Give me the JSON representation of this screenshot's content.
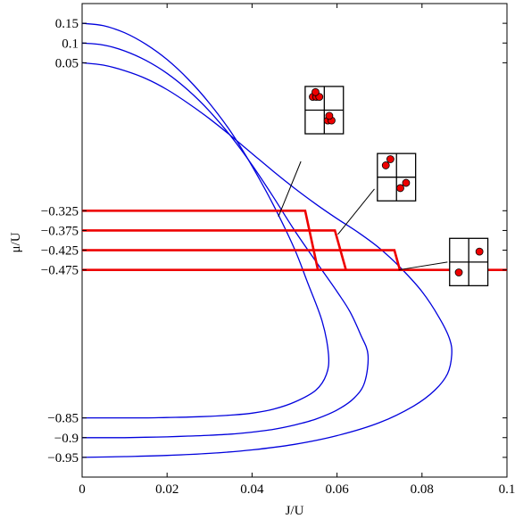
{
  "chart_data": {
    "type": "line",
    "title": "",
    "xlabel": "J/U",
    "ylabel": "μ/U",
    "xlim": [
      0,
      0.1
    ],
    "ylim": [
      -1.0,
      0.2
    ],
    "xticks": [
      0,
      0.02,
      0.04,
      0.06,
      0.08,
      0.1
    ],
    "xtick_labels": [
      "0",
      "0.02",
      "0.04",
      "0.06",
      "0.08",
      "0.1"
    ],
    "yticks": [
      0.15,
      0.1,
      0.05,
      -0.325,
      -0.375,
      -0.425,
      -0.475,
      -0.85,
      -0.9,
      -0.95
    ],
    "ytick_labels": [
      "0.15",
      "0.1",
      "0.05",
      "−0.325",
      "−0.375",
      "−0.425",
      "−0.475",
      "−0.85",
      "−0.9",
      "−0.95"
    ],
    "grid": false,
    "colors": {
      "boundary": "#0000dd",
      "paths": "#ee0000",
      "axes": "#000000"
    },
    "boundaries": [
      {
        "x": [
          0,
          0.005,
          0.01,
          0.015,
          0.02,
          0.025,
          0.03,
          0.035,
          0.04,
          0.045,
          0.05,
          0.053,
          0.0565,
          0.058,
          0.0575,
          0.055,
          0.05,
          0.045,
          0.04,
          0.035,
          0.03,
          0.025,
          0.02,
          0.015,
          0.01,
          0.005,
          0
        ],
        "y": [
          0.15,
          0.144,
          0.126,
          0.097,
          0.058,
          0.008,
          -0.053,
          -0.125,
          -0.212,
          -0.31,
          -0.422,
          -0.505,
          -0.605,
          -0.69,
          -0.74,
          -0.78,
          -0.81,
          -0.828,
          -0.838,
          -0.843,
          -0.846,
          -0.848,
          -0.849,
          -0.85,
          -0.85,
          -0.85,
          -0.85
        ]
      },
      {
        "x": [
          0,
          0.005,
          0.01,
          0.015,
          0.02,
          0.025,
          0.03,
          0.035,
          0.04,
          0.045,
          0.05,
          0.055,
          0.06,
          0.063,
          0.0655,
          0.0673,
          0.0665,
          0.064,
          0.06,
          0.055,
          0.05,
          0.045,
          0.04,
          0.035,
          0.03,
          0.025,
          0.02,
          0.015,
          0.01,
          0.005,
          0
        ],
        "y": [
          0.1,
          0.095,
          0.08,
          0.056,
          0.023,
          -0.02,
          -0.073,
          -0.136,
          -0.209,
          -0.29,
          -0.375,
          -0.453,
          -0.53,
          -0.58,
          -0.638,
          -0.69,
          -0.76,
          -0.8,
          -0.83,
          -0.853,
          -0.868,
          -0.879,
          -0.886,
          -0.891,
          -0.894,
          -0.896,
          -0.898,
          -0.899,
          -0.9,
          -0.9,
          -0.9
        ]
      },
      {
        "x": [
          0,
          0.005,
          0.01,
          0.015,
          0.02,
          0.025,
          0.03,
          0.035,
          0.04,
          0.045,
          0.05,
          0.055,
          0.06,
          0.065,
          0.07,
          0.075,
          0.08,
          0.084,
          0.0865,
          0.087,
          0.086,
          0.083,
          0.078,
          0.07,
          0.06,
          0.05,
          0.04,
          0.03,
          0.02,
          0.01,
          0
        ],
        "y": [
          0.05,
          0.044,
          0.03,
          0.01,
          -0.018,
          -0.053,
          -0.092,
          -0.135,
          -0.18,
          -0.225,
          -0.268,
          -0.308,
          -0.345,
          -0.38,
          -0.42,
          -0.47,
          -0.53,
          -0.595,
          -0.65,
          -0.69,
          -0.738,
          -0.78,
          -0.82,
          -0.862,
          -0.895,
          -0.917,
          -0.931,
          -0.94,
          -0.945,
          -0.948,
          -0.95
        ]
      }
    ],
    "paths": [
      {
        "x": [
          0,
          0.0525,
          0.0555
        ],
        "y": [
          -0.325,
          -0.325,
          -0.475
        ]
      },
      {
        "x": [
          0,
          0.0595,
          0.0621
        ],
        "y": [
          -0.375,
          -0.375,
          -0.475
        ]
      },
      {
        "x": [
          0,
          0.0735,
          0.0748
        ],
        "y": [
          -0.425,
          -0.425,
          -0.475
        ]
      },
      {
        "x": [
          0,
          0.1
        ],
        "y": [
          -0.475,
          -0.475
        ]
      }
    ],
    "insets": [
      {
        "box": {
          "x": [
            0.0525,
            0.0615
          ],
          "y": [
            -0.01,
            -0.13
          ]
        },
        "lead": {
          "x": [
            0.0462,
            0.0515
          ],
          "y": [
            -0.34,
            -0.2
          ]
        },
        "dots": [
          [
            0.2,
            0.22
          ],
          [
            0.29,
            0.22
          ],
          [
            0.37,
            0.22
          ],
          [
            0.27,
            0.12
          ],
          [
            0.59,
            0.72
          ],
          [
            0.69,
            0.72
          ],
          [
            0.63,
            0.62
          ]
        ]
      },
      {
        "box": {
          "x": [
            0.0695,
            0.0785
          ],
          "y": [
            -0.18,
            -0.3
          ]
        },
        "lead": {
          "x": [
            0.0602,
            0.0688
          ],
          "y": [
            -0.385,
            -0.27
          ]
        },
        "dots": [
          [
            0.22,
            0.25
          ],
          [
            0.34,
            0.12
          ],
          [
            0.6,
            0.73
          ],
          [
            0.75,
            0.62
          ]
        ]
      },
      {
        "box": {
          "x": [
            0.0865,
            0.0955
          ],
          "y": [
            -0.395,
            -0.515
          ]
        },
        "lead": {
          "x": [
            0.0745,
            0.086
          ],
          "y": [
            -0.475,
            -0.455
          ]
        },
        "dots": [
          [
            0.24,
            0.72
          ],
          [
            0.78,
            0.28
          ]
        ]
      }
    ]
  }
}
